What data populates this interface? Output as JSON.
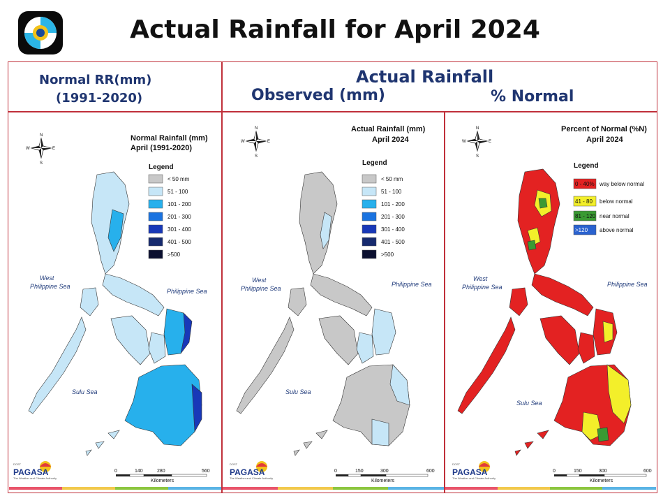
{
  "slide": {
    "title": "Actual Rainfall for April 2024",
    "header_left_line1": "Normal RR(mm)",
    "header_left_line2": "(1991-2020)",
    "header_center": "Actual Rainfall",
    "header_observed": "Observed (mm)",
    "header_percent": "% Normal"
  },
  "compass": {
    "n": "N",
    "s": "S",
    "e": "E",
    "w": "W"
  },
  "seas": {
    "west_line1": "West",
    "west_line2": "Philippine Sea",
    "east": "Philippine Sea",
    "sulu": "Sulu Sea"
  },
  "branding": {
    "agency": "PAGASA",
    "dost": "DOST",
    "tagline": "The Weather and Climate Authority"
  },
  "panels": [
    {
      "title_line1": "Normal Rainfall (mm)",
      "title_line2": "April (1991-2020)",
      "legend_title": "Legend",
      "legend": [
        {
          "label": "< 50 mm",
          "color": "#c8c8c8"
        },
        {
          "label": "51 - 100",
          "color": "#c6e6f7"
        },
        {
          "label": "101 - 200",
          "color": "#27b0ec"
        },
        {
          "label": "201 - 300",
          "color": "#1a73e0"
        },
        {
          "label": "301 - 400",
          "color": "#1838b8"
        },
        {
          "label": "401 - 500",
          "color": "#162a6e"
        },
        {
          "label": ">500",
          "color": "#0b1030"
        }
      ],
      "scale": {
        "ticks": [
          "0",
          "140",
          "280",
          "560"
        ],
        "unit": "Kilometers"
      }
    },
    {
      "title_line1": "Actual Rainfall (mm)",
      "title_line2": "April 2024",
      "legend_title": "Legend",
      "legend": [
        {
          "label": "< 50 mm",
          "color": "#c8c8c8"
        },
        {
          "label": "51 - 100",
          "color": "#c6e6f7"
        },
        {
          "label": "101 - 200",
          "color": "#27b0ec"
        },
        {
          "label": "201 - 300",
          "color": "#1a73e0"
        },
        {
          "label": "301 - 400",
          "color": "#1838b8"
        },
        {
          "label": "401 - 500",
          "color": "#162a6e"
        },
        {
          "label": ">500",
          "color": "#0b1030"
        }
      ],
      "scale": {
        "ticks": [
          "0",
          "150",
          "300",
          "600"
        ],
        "unit": "Kilometers"
      }
    },
    {
      "title_line1": "Percent of Normal (%N)",
      "title_line2": "April 2024",
      "legend_title": "Legend",
      "legend": [
        {
          "range": "0 - 40%",
          "label": "way below normal",
          "color": "#e32222"
        },
        {
          "range": "41 - 80",
          "label": "below normal",
          "color": "#f3ef2a"
        },
        {
          "range": "81 - 120",
          "label": "near normal",
          "color": "#3a9a33"
        },
        {
          "range": ">120",
          "label": "above normal",
          "color": "#2a62cf"
        }
      ],
      "scale": {
        "ticks": [
          "0",
          "150",
          "300",
          "600"
        ],
        "unit": "Kilometers"
      }
    }
  ]
}
